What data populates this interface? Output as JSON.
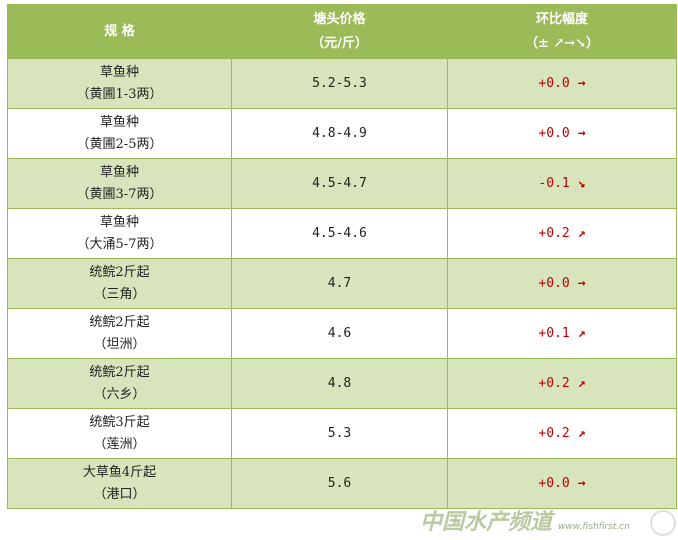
{
  "header": {
    "spec": "规 格",
    "price_l1": "塘头价格",
    "price_l2": "（元/斤）",
    "change_l1": "环比幅度",
    "change_l2": "（± ↗→↘）"
  },
  "rows": [
    {
      "name": "草鱼种",
      "sub": "（黄圃1-3两）",
      "price": "5.2-5.3",
      "change": "+0.0",
      "arrow": "→"
    },
    {
      "name": "草鱼种",
      "sub": "（黄圃2-5两）",
      "price": "4.8-4.9",
      "change": "+0.0",
      "arrow": "→"
    },
    {
      "name": "草鱼种",
      "sub": "（黄圃3-7两）",
      "price": "4.5-4.7",
      "change": "-0.1",
      "arrow": "↘"
    },
    {
      "name": "草鱼种",
      "sub": "（大涌5-7两）",
      "price": "4.5-4.6",
      "change": "+0.2",
      "arrow": "↗"
    },
    {
      "name": "统鲩2斤起",
      "sub": "（三角）",
      "price": "4.7",
      "change": "+0.0",
      "arrow": "→"
    },
    {
      "name": "统鲩2斤起",
      "sub": "（坦洲）",
      "price": "4.6",
      "change": "+0.1",
      "arrow": "↗"
    },
    {
      "name": "统鲩2斤起",
      "sub": "（六乡）",
      "price": "4.8",
      "change": "+0.2",
      "arrow": "↗"
    },
    {
      "name": "统鲩3斤起",
      "sub": "（莲洲）",
      "price": "5.3",
      "change": "+0.2",
      "arrow": "↗"
    },
    {
      "name": "大草鱼4斤起",
      "sub": "（港口）",
      "price": "5.6",
      "change": "+0.0",
      "arrow": "→"
    }
  ],
  "watermark": {
    "text": "中国水产频道",
    "url": "www.fishfirst.cn"
  }
}
